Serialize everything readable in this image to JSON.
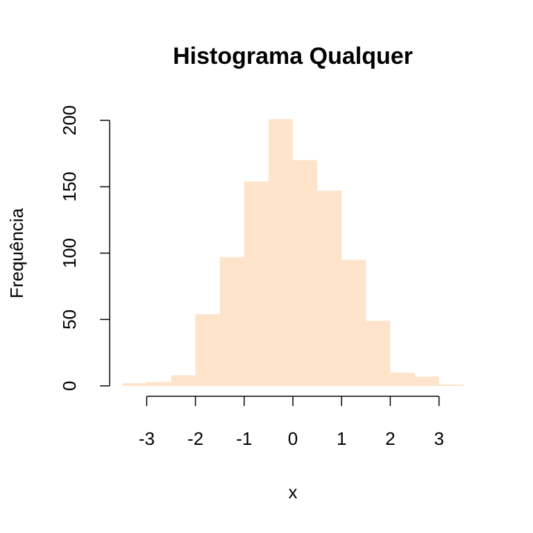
{
  "chart_data": {
    "type": "bar",
    "title": "Histograma Qualquer",
    "xlabel": "x",
    "ylabel": "Frequência",
    "bar_color": "#FFE4CC",
    "bins": [
      {
        "x0": -3.5,
        "x1": -3.0,
        "value": 2
      },
      {
        "x0": -3.0,
        "x1": -2.5,
        "value": 3
      },
      {
        "x0": -2.5,
        "x1": -2.0,
        "value": 8
      },
      {
        "x0": -2.0,
        "x1": -1.5,
        "value": 54
      },
      {
        "x0": -1.5,
        "x1": -1.0,
        "value": 97
      },
      {
        "x0": -1.0,
        "x1": -0.5,
        "value": 154
      },
      {
        "x0": -0.5,
        "x1": 0.0,
        "value": 201
      },
      {
        "x0": 0.0,
        "x1": 0.5,
        "value": 170
      },
      {
        "x0": 0.5,
        "x1": 1.0,
        "value": 147
      },
      {
        "x0": 1.0,
        "x1": 1.5,
        "value": 95
      },
      {
        "x0": 1.5,
        "x1": 2.0,
        "value": 49
      },
      {
        "x0": 2.0,
        "x1": 2.5,
        "value": 10
      },
      {
        "x0": 2.5,
        "x1": 3.0,
        "value": 7
      },
      {
        "x0": 3.0,
        "x1": 3.5,
        "value": 1
      }
    ],
    "xticks": [
      -3,
      -2,
      -1,
      0,
      1,
      2,
      3
    ],
    "yticks": [
      0,
      50,
      100,
      150,
      200
    ],
    "xtick_labels": [
      "-3",
      "-2",
      "-1",
      "0",
      "1",
      "2",
      "3"
    ],
    "ytick_labels": [
      "0",
      "50",
      "100",
      "150",
      "200"
    ],
    "xlim": [
      -3.5,
      3.5
    ],
    "ylim": [
      0,
      200
    ],
    "grid": false,
    "legend": false
  }
}
